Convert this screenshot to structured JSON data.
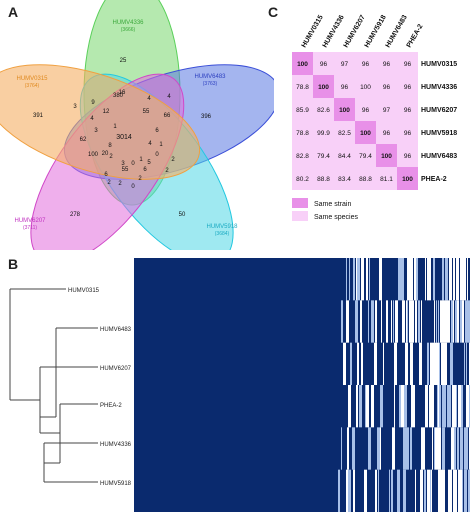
{
  "panels": {
    "a": "A",
    "b": "B",
    "c": "C"
  },
  "venn": {
    "sets": [
      {
        "name": "HUMV4336",
        "count": "(3666)",
        "color": "#5ad05a",
        "fill": "rgba(120,215,110,0.55)",
        "label_color": "#3aa83a"
      },
      {
        "name": "HUMV6483",
        "count": "(3763)",
        "color": "#3b4fd8",
        "fill": "rgba(90,120,225,0.55)",
        "label_color": "#2c3fc0"
      },
      {
        "name": "HUMV5918",
        "count": "(3684)",
        "color": "#22c8e0",
        "fill": "rgba(80,215,230,0.55)",
        "label_color": "#1aaac2"
      },
      {
        "name": "HUMV6207",
        "count": "(3711)",
        "color": "#d048c8",
        "fill": "rgba(225,110,220,0.55)",
        "label_color": "#c030c0"
      },
      {
        "name": "HUMV0315",
        "count": "(3764)",
        "color": "#f0a040",
        "fill": "rgba(245,175,100,0.6)",
        "label_color": "#e08a20"
      }
    ],
    "region_counts": [
      "25",
      "396",
      "50",
      "278",
      "391",
      "380",
      "4",
      "4",
      "66",
      "12",
      "55",
      "6",
      "3",
      "3014",
      "1",
      "0",
      "5",
      "2",
      "3",
      "9",
      "4",
      "16",
      "62",
      "100",
      "2",
      "20",
      "3",
      "0",
      "1",
      "2",
      "6",
      "2",
      "55",
      "2",
      "0",
      "2",
      "6",
      "8",
      "1",
      "4"
    ]
  },
  "tree": {
    "leaves": [
      "HUMV0315",
      "HUMV6483",
      "HUMV6207",
      "PHEA-2",
      "HUMV4336",
      "HUMV5918"
    ]
  },
  "identity": {
    "strains": [
      "HUMV0315",
      "HUMV4336",
      "HUMV6207",
      "HUMV5918",
      "HUMV6483",
      "PHEA-2"
    ],
    "matrix": [
      [
        "100",
        "96",
        "97",
        "96",
        "96",
        "96"
      ],
      [
        "78.8",
        "100",
        "96",
        "100",
        "96",
        "96"
      ],
      [
        "85.9",
        "82.6",
        "100",
        "96",
        "97",
        "96"
      ],
      [
        "78.8",
        "99.9",
        "82.5",
        "100",
        "96",
        "96"
      ],
      [
        "82.8",
        "79.4",
        "84.4",
        "79.4",
        "100",
        "96"
      ],
      [
        "80.2",
        "88.8",
        "83.4",
        "88.8",
        "81.1",
        "100"
      ]
    ],
    "legend": [
      {
        "label": "Same strain",
        "color": "#e890e8"
      },
      {
        "label": "Same species",
        "color": "#f8d0f8"
      }
    ],
    "colors": {
      "diag": "#e890e8",
      "other": "#f8d0f8"
    }
  },
  "chart_data": [
    {
      "type": "venn",
      "sets": [
        {
          "name": "HUMV4336",
          "size": 3666
        },
        {
          "name": "HUMV6483",
          "size": 3763
        },
        {
          "name": "HUMV5918",
          "size": 3684
        },
        {
          "name": "HUMV6207",
          "size": 3711
        },
        {
          "name": "HUMV0315",
          "size": 3764
        }
      ],
      "core": 3014,
      "unique": {
        "HUMV4336": 25,
        "HUMV6483": 396,
        "HUMV5918": 50,
        "HUMV6207": 278,
        "HUMV0315": 391
      }
    },
    {
      "type": "heatmap",
      "rows": [
        "HUMV0315",
        "HUMV6483",
        "HUMV6207",
        "PHEA-2",
        "HUMV4336",
        "HUMV5918"
      ],
      "colors": {
        "present": "#0a2a6e",
        "absent": "#ffffff"
      }
    },
    {
      "type": "table",
      "rows": [
        "HUMV0315",
        "HUMV4336",
        "HUMV6207",
        "HUMV5918",
        "HUMV6483",
        "PHEA-2"
      ],
      "columns": [
        "HUMV0315",
        "HUMV4336",
        "HUMV6207",
        "HUMV5918",
        "HUMV6483",
        "PHEA-2"
      ],
      "values": [
        [
          100,
          96,
          97,
          96,
          96,
          96
        ],
        [
          78.8,
          100,
          96,
          100,
          96,
          96
        ],
        [
          85.9,
          82.6,
          100,
          96,
          97,
          96
        ],
        [
          78.8,
          99.9,
          82.5,
          100,
          96,
          96
        ],
        [
          82.8,
          79.4,
          84.4,
          79.4,
          100,
          96
        ],
        [
          80.2,
          88.8,
          83.4,
          88.8,
          81.1,
          100
        ]
      ]
    }
  ]
}
